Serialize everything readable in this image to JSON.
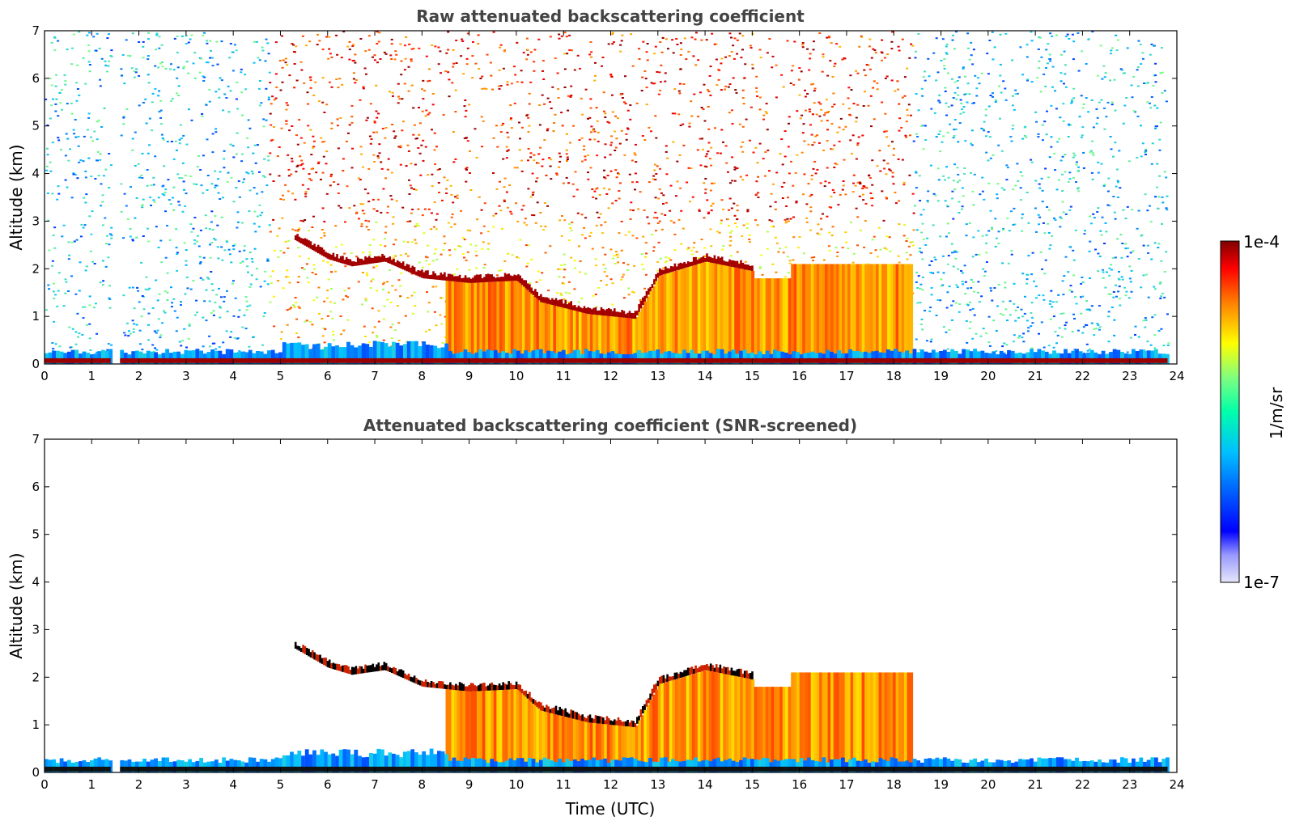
{
  "chart_data": [
    {
      "type": "heatmap",
      "title": "Raw attenuated backscattering coefficient",
      "xlabel": "",
      "ylabel": "Altitude (km)",
      "xlim": [
        0,
        24
      ],
      "ylim": [
        0,
        7
      ],
      "xticks": [
        "0",
        "1",
        "2",
        "3",
        "4",
        "5",
        "6",
        "7",
        "8",
        "9",
        "10",
        "11",
        "12",
        "13",
        "14",
        "15",
        "16",
        "17",
        "18",
        "19",
        "20",
        "21",
        "22",
        "23",
        "24"
      ],
      "yticks": [
        "0",
        "1",
        "2",
        "3",
        "4",
        "5",
        "6",
        "7"
      ],
      "data_end_time": 23.8,
      "cloud_base_km": [
        {
          "t": 5.3,
          "z": 2.6
        },
        {
          "t": 6.0,
          "z": 2.2
        },
        {
          "t": 6.5,
          "z": 2.05
        },
        {
          "t": 7.2,
          "z": 2.15
        },
        {
          "t": 8.0,
          "z": 1.8
        },
        {
          "t": 9.0,
          "z": 1.7
        },
        {
          "t": 10.0,
          "z": 1.75
        },
        {
          "t": 10.5,
          "z": 1.3
        },
        {
          "t": 11.5,
          "z": 1.05
        },
        {
          "t": 12.5,
          "z": 0.95
        },
        {
          "t": 13.0,
          "z": 1.85
        },
        {
          "t": 14.0,
          "z": 2.15
        },
        {
          "t": 15.0,
          "z": 1.95
        }
      ],
      "surface_layer_km": 0.1
    },
    {
      "type": "heatmap",
      "title": "Attenuated backscattering coefficient (SNR-screened)",
      "xlabel": "Time (UTC)",
      "ylabel": "Altitude (km)",
      "xlim": [
        0,
        24
      ],
      "ylim": [
        0,
        7
      ],
      "xticks": [
        "0",
        "1",
        "2",
        "3",
        "4",
        "5",
        "6",
        "7",
        "8",
        "9",
        "10",
        "11",
        "12",
        "13",
        "14",
        "15",
        "16",
        "17",
        "18",
        "19",
        "20",
        "21",
        "22",
        "23",
        "24"
      ],
      "yticks": [
        "0",
        "1",
        "2",
        "3",
        "4",
        "5",
        "6",
        "7"
      ]
    }
  ],
  "colorbar": {
    "label": "1/m/sr",
    "max_label": "1e-4",
    "min_label": "1e-7",
    "colormap": [
      "#e6e6fa",
      "#0000ff",
      "#00bfff",
      "#7fff7f",
      "#ffff00",
      "#ff7f00",
      "#ff0000",
      "#7f0000"
    ]
  }
}
